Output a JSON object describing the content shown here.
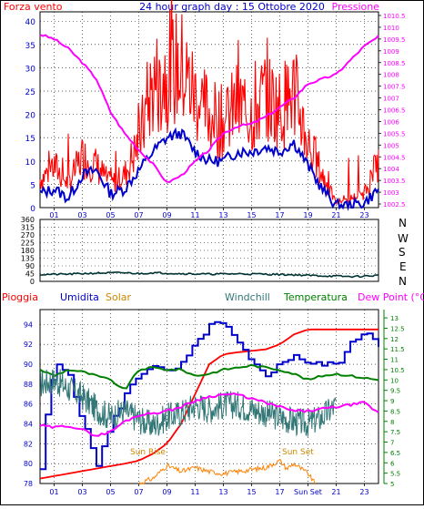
{
  "colors": {
    "wind_gust": "#ff0000",
    "wind_avg": "#0000cc",
    "pressure": "#ff00ff",
    "direction": "#003333",
    "rain": "#ff0000",
    "humidity": "#0000cc",
    "solar": "#ff8000",
    "windchill": "#337777",
    "temperature": "#008000",
    "dewpoint": "#ff00ff",
    "axis_green": "#008000",
    "title_blue": "#0000cc",
    "solar_text": "#cc8800"
  },
  "header": {
    "left_label": "Forza vento",
    "title": "24 hour graph day : 15 Ottobre 2020",
    "right_label": "Pressione"
  },
  "direction_letters": [
    "N",
    "W",
    "S",
    "E",
    "N"
  ],
  "legend": {
    "rain": "Pioggia",
    "humidity": "Umidita",
    "solar": "Solar",
    "windchill": "Windchill",
    "temperature": "Temperatura",
    "dewpoint": "Dew Point (°C)"
  },
  "annotations": {
    "sunrise": "Sun Rise",
    "sunset": "Sun Set"
  },
  "chart_data": [
    {
      "type": "line",
      "x_ticks": [
        "01",
        "03",
        "05",
        "07",
        "09",
        "11",
        "13",
        "15",
        "17",
        "19",
        "21",
        "23"
      ],
      "y_left_ticks": [
        0,
        5,
        10,
        15,
        20,
        25,
        30,
        35,
        40
      ],
      "y_left_range": [
        0,
        42
      ],
      "y_right_ticks": [
        "1002.5",
        "1003",
        "1003.5",
        "1004",
        "1004.5",
        "1005",
        "1005.5",
        "1006",
        "1006.5",
        "1007",
        "1007.5",
        "1008",
        "1008.5",
        "1009",
        "1009.5",
        "1010",
        "1010.5"
      ],
      "y_right_range": [
        1002.5,
        1010.5
      ],
      "x_range": [
        0,
        24
      ],
      "series": [
        {
          "key": "wind_gust",
          "points": [
            [
              0,
              6
            ],
            [
              1,
              9
            ],
            [
              2,
              5
            ],
            [
              3,
              11
            ],
            [
              4,
              9
            ],
            [
              5,
              5
            ],
            [
              6,
              7
            ],
            [
              7,
              14
            ],
            [
              8,
              26
            ],
            [
              9,
              29
            ],
            [
              10,
              30
            ],
            [
              11,
              24
            ],
            [
              12,
              20
            ],
            [
              13,
              18
            ],
            [
              14,
              22
            ],
            [
              15,
              20
            ],
            [
              16,
              24
            ],
            [
              17,
              21
            ],
            [
              18,
              25
            ],
            [
              19,
              14
            ],
            [
              20,
              7
            ],
            [
              21,
              1
            ],
            [
              22,
              2
            ],
            [
              23,
              3
            ],
            [
              24,
              10
            ]
          ]
        },
        {
          "key": "wind_avg",
          "points": [
            [
              0,
              3
            ],
            [
              1,
              4
            ],
            [
              2,
              2
            ],
            [
              3,
              7
            ],
            [
              4,
              8
            ],
            [
              5,
              3
            ],
            [
              6,
              4
            ],
            [
              7,
              8
            ],
            [
              8,
              12
            ],
            [
              9,
              15
            ],
            [
              10,
              16
            ],
            [
              11,
              12
            ],
            [
              12,
              10
            ],
            [
              13,
              10
            ],
            [
              14,
              12
            ],
            [
              15,
              12
            ],
            [
              16,
              13
            ],
            [
              17,
              12
            ],
            [
              18,
              14
            ],
            [
              19,
              9
            ],
            [
              20,
              4
            ],
            [
              21,
              0.5
            ],
            [
              22,
              0.5
            ],
            [
              23,
              1
            ],
            [
              24,
              4
            ]
          ]
        },
        {
          "key": "pressure",
          "points": [
            [
              0,
              1009.7
            ],
            [
              1,
              1009.5
            ],
            [
              2,
              1009.1
            ],
            [
              3,
              1008.5
            ],
            [
              4,
              1007.8
            ],
            [
              5,
              1006.4
            ],
            [
              6,
              1005.5
            ],
            [
              7,
              1004.8
            ],
            [
              8,
              1004.2
            ],
            [
              9,
              1003.4
            ],
            [
              10,
              1003.7
            ],
            [
              11,
              1004.3
            ],
            [
              12,
              1004.8
            ],
            [
              13,
              1005.5
            ],
            [
              14,
              1005.8
            ],
            [
              15,
              1005.9
            ],
            [
              16,
              1006.2
            ],
            [
              17,
              1006.6
            ],
            [
              18,
              1007.0
            ],
            [
              19,
              1007.6
            ],
            [
              20,
              1007.8
            ],
            [
              21,
              1008.0
            ],
            [
              22,
              1008.6
            ],
            [
              23,
              1009.2
            ],
            [
              24,
              1009.6
            ]
          ]
        }
      ]
    },
    {
      "type": "line",
      "y_ticks": [
        0,
        45,
        90,
        135,
        180,
        225,
        270,
        315,
        360
      ],
      "y_range": [
        0,
        360
      ],
      "x_range": [
        0,
        24
      ],
      "series": [
        {
          "key": "direction",
          "points": [
            [
              0,
              40
            ],
            [
              2,
              42
            ],
            [
              4,
              48
            ],
            [
              6,
              50
            ],
            [
              7,
              45
            ],
            [
              8,
              50
            ],
            [
              9,
              48
            ],
            [
              10,
              45
            ],
            [
              12,
              42
            ],
            [
              14,
              44
            ],
            [
              16,
              42
            ],
            [
              18,
              38
            ],
            [
              20,
              32
            ],
            [
              22,
              28
            ],
            [
              23,
              30
            ],
            [
              24,
              35
            ]
          ]
        }
      ]
    },
    {
      "type": "line",
      "x_ticks": [
        "01",
        "03",
        "05",
        "07",
        "09",
        "11",
        "13",
        "15",
        "17",
        "Sun Set",
        "21",
        "23"
      ],
      "y_left_ticks": [
        78,
        80,
        82,
        84,
        86,
        88,
        90,
        92,
        94
      ],
      "y_left_range": [
        78,
        95.5
      ],
      "y_right_ticks": [
        "5",
        "5.5",
        "6",
        "6.5",
        "7",
        "7.5",
        "8",
        "8.5",
        "9",
        "9.5",
        "10",
        "10.5",
        "11",
        "11.5",
        "12",
        "12.5",
        "13"
      ],
      "y_right_range": [
        5,
        13.4
      ],
      "x_range": [
        0,
        24
      ],
      "series": [
        {
          "key": "rain",
          "axis": "left",
          "points": [
            [
              0,
              78.5
            ],
            [
              2,
              79
            ],
            [
              4,
              79.5
            ],
            [
              6,
              80
            ],
            [
              7,
              80.3
            ],
            [
              8,
              81
            ],
            [
              9,
              82
            ],
            [
              10,
              84
            ],
            [
              11,
              87
            ],
            [
              12,
              90
            ],
            [
              13,
              91
            ],
            [
              14,
              91.2
            ],
            [
              16,
              91.5
            ],
            [
              17,
              92
            ],
            [
              18,
              93
            ],
            [
              19,
              93.5
            ],
            [
              24,
              93.5
            ]
          ]
        },
        {
          "key": "humidity",
          "axis": "left",
          "points": [
            [
              0,
              79.5
            ],
            [
              0.5,
              86
            ],
            [
              1,
              90
            ],
            [
              2,
              89
            ],
            [
              3,
              84
            ],
            [
              4,
              80
            ],
            [
              5,
              84
            ],
            [
              6,
              87
            ],
            [
              7,
              89
            ],
            [
              8,
              90
            ],
            [
              9,
              89
            ],
            [
              10,
              90
            ],
            [
              11,
              92
            ],
            [
              12,
              94
            ],
            [
              13,
              94
            ],
            [
              14,
              92
            ],
            [
              15,
              90
            ],
            [
              16,
              89
            ],
            [
              17,
              90
            ],
            [
              18,
              91
            ],
            [
              19,
              90
            ],
            [
              20,
              90
            ],
            [
              21,
              90
            ],
            [
              22,
              92
            ],
            [
              23,
              93.5
            ],
            [
              24,
              92
            ]
          ]
        },
        {
          "key": "temperature",
          "axis": "right",
          "points": [
            [
              0,
              10.5
            ],
            [
              1,
              10.2
            ],
            [
              2,
              10.5
            ],
            [
              3,
              10.4
            ],
            [
              4,
              10.2
            ],
            [
              5,
              10
            ],
            [
              6,
              9.5
            ],
            [
              7,
              10.5
            ],
            [
              8,
              10.6
            ],
            [
              9,
              10.5
            ],
            [
              10,
              10.5
            ],
            [
              11,
              10.2
            ],
            [
              12,
              10.3
            ],
            [
              13,
              10.5
            ],
            [
              14,
              10.6
            ],
            [
              15,
              10.7
            ],
            [
              16,
              10.6
            ],
            [
              17,
              10.5
            ],
            [
              18,
              10.3
            ],
            [
              19,
              10
            ],
            [
              20,
              10.2
            ],
            [
              21,
              10.3
            ],
            [
              22,
              10.2
            ],
            [
              23,
              10.1
            ],
            [
              24,
              10
            ]
          ]
        },
        {
          "key": "windchill",
          "axis": "right",
          "points": [
            [
              0,
              9.8
            ],
            [
              1,
              10
            ],
            [
              2,
              9.6
            ],
            [
              3,
              9.2
            ],
            [
              4,
              8.6
            ],
            [
              5,
              8.2
            ],
            [
              6,
              8.5
            ],
            [
              7,
              8.1
            ],
            [
              8,
              7.8
            ],
            [
              9,
              8.2
            ],
            [
              10,
              8.4
            ],
            [
              11,
              8.8
            ],
            [
              12,
              8.6
            ],
            [
              13,
              8.8
            ],
            [
              14,
              8.8
            ],
            [
              15,
              8.6
            ],
            [
              16,
              8.4
            ],
            [
              17,
              8.2
            ],
            [
              18,
              8.0
            ],
            [
              19,
              7.9
            ],
            [
              20,
              8.2
            ],
            [
              21,
              8.8
            ]
          ]
        },
        {
          "key": "dewpoint",
          "axis": "right",
          "points": [
            [
              0,
              7.8
            ],
            [
              1,
              7.7
            ],
            [
              2,
              7.8
            ],
            [
              3,
              7.6
            ],
            [
              4,
              7.3
            ],
            [
              5,
              7.5
            ],
            [
              6,
              8.0
            ],
            [
              7,
              8.3
            ],
            [
              8,
              8.4
            ],
            [
              9,
              8.5
            ],
            [
              10,
              8.7
            ],
            [
              11,
              9.0
            ],
            [
              12,
              9.2
            ],
            [
              13,
              9.3
            ],
            [
              14,
              9.3
            ],
            [
              15,
              9.1
            ],
            [
              16,
              8.9
            ],
            [
              17,
              8.7
            ],
            [
              18,
              8.5
            ],
            [
              19,
              8.5
            ],
            [
              20,
              8.6
            ],
            [
              21,
              8.7
            ],
            [
              22,
              8.8
            ],
            [
              23,
              8.9
            ],
            [
              24,
              8.4
            ]
          ]
        },
        {
          "key": "solar",
          "axis": "left",
          "points": [
            [
              7,
              78
            ],
            [
              8,
              78.5
            ],
            [
              9,
              79.8
            ],
            [
              10,
              79.2
            ],
            [
              11,
              79.6
            ],
            [
              12,
              79.2
            ],
            [
              13,
              79
            ],
            [
              14,
              79.2
            ],
            [
              15,
              79.4
            ],
            [
              16,
              79.6
            ],
            [
              17,
              80.3
            ],
            [
              17.5,
              79.5
            ],
            [
              18,
              80
            ],
            [
              19,
              79
            ],
            [
              19.5,
              78
            ]
          ]
        }
      ]
    }
  ]
}
